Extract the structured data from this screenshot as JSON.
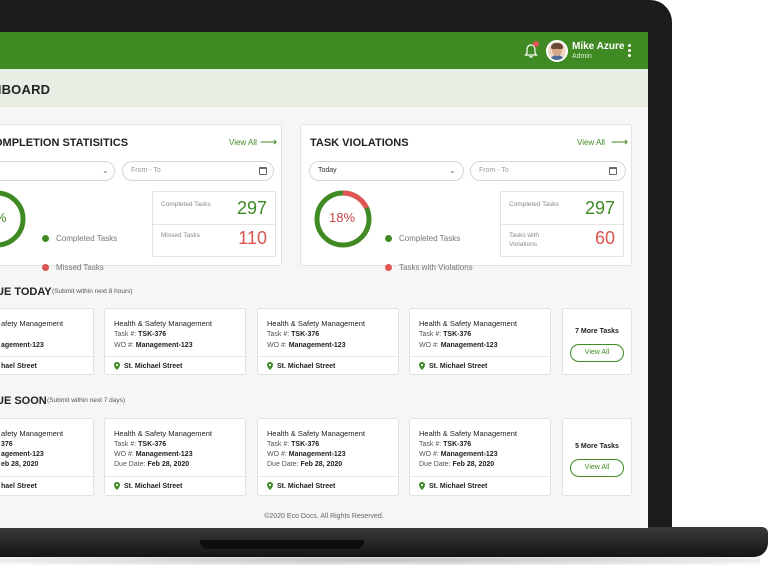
{
  "header": {
    "user_name": "Mike Azure",
    "user_role": "Admin",
    "bell_icon": "bell-icon",
    "menu_icon": "kebab-menu-icon"
  },
  "page_title": "HBOARD",
  "completion_panel": {
    "title": "OMPLETION STATISITICS",
    "view_all": "View All",
    "date_placeholder": "From - To",
    "donut_label": "%",
    "legend": [
      "Completed Tasks",
      "Missed Tasks"
    ],
    "stats": [
      {
        "label": "Completed Tasks",
        "value": "297"
      },
      {
        "label": "Missed Tasks",
        "value": "110"
      }
    ],
    "completed_fraction": 0.73
  },
  "violations_panel": {
    "title": "TASK VIOLATIONS",
    "view_all": "View All",
    "period": "Today",
    "date_placeholder": "From - To",
    "donut_label": "18%",
    "legend": [
      "Completed Tasks",
      "Tasks with Violations"
    ],
    "stats": [
      {
        "label": "Completed Tasks",
        "value": "297"
      },
      {
        "label": "Tasks with Violations",
        "value": "60"
      }
    ],
    "violation_fraction": 0.18
  },
  "due_today": {
    "title": "UE TODAY",
    "subtitle": "(Submit within next 8 hours)",
    "cards": [
      {
        "title": "afety Management",
        "wo": "agement-123",
        "location": "hael Street"
      },
      {
        "title": "Health & Safety Management",
        "task_label": "Task #:",
        "task": "TSK-376",
        "wo_label": "WO #:",
        "wo": "Management-123",
        "location": "St. Michael Street"
      },
      {
        "title": "Health & Safety Management",
        "task_label": "Task #:",
        "task": "TSK-376",
        "wo_label": "WO #:",
        "wo": "Management-123",
        "location": "St. Michael Street"
      },
      {
        "title": "Health & Safety Management",
        "task_label": "Task #:",
        "task": "TSK-376",
        "wo_label": "WO #:",
        "wo": "Management-123",
        "location": "St. Michael Street"
      }
    ],
    "more_text": "7 More Tasks",
    "more_button": "View All"
  },
  "due_soon": {
    "title": "UE SOON",
    "subtitle": "(Submit within next 7 days)",
    "cards": [
      {
        "title": "afety Management",
        "task": "376",
        "wo": "agement-123",
        "due": "eb 28, 2020",
        "location": "hael Street"
      },
      {
        "title": "Health & Safety Management",
        "task_label": "Task #:",
        "task": "TSK-376",
        "wo_label": "WO #:",
        "wo": "Management-123",
        "due_label": "Due Date:",
        "due": "Feb 28, 2020",
        "location": "St. Michael Street"
      },
      {
        "title": "Health & Safety Management",
        "task_label": "Task #:",
        "task": "TSK-376",
        "wo_label": "WO #:",
        "wo": "Management-123",
        "due_label": "Due Date:",
        "due": "Feb 28, 2020",
        "location": "St. Michael Street"
      },
      {
        "title": "Health & Safety Management",
        "task_label": "Task #:",
        "task": "TSK-376",
        "wo_label": "WO #:",
        "wo": "Management-123",
        "due_label": "Due Date:",
        "due": "Feb 28, 2020",
        "location": "St. Michael Street"
      }
    ],
    "more_text": "5 More Tasks",
    "more_button": "View All"
  },
  "footer": "©2020 Eco Docs. All Rights Reserved.",
  "colors": {
    "brand_green": "#3f8a23",
    "alert_red": "#d9534f"
  }
}
